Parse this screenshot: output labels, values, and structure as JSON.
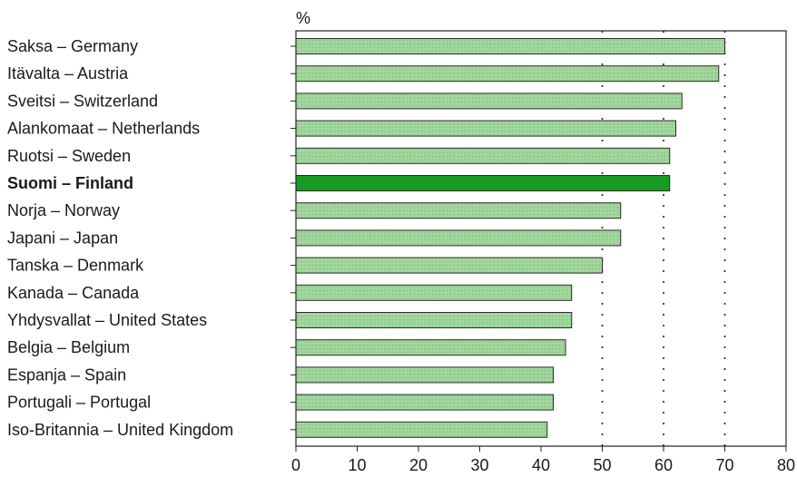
{
  "chart_data": {
    "type": "bar",
    "orientation": "horizontal",
    "unit": "%",
    "categories": [
      "Saksa – Germany",
      "Itävalta – Austria",
      "Sveitsi – Switzerland",
      "Alankomaat – Netherlands",
      "Ruotsi – Sweden",
      "Suomi – Finland",
      "Norja – Norway",
      "Japani  – Japan",
      "Tanska – Denmark",
      "Kanada – Canada",
      "Yhdysvallat – United States",
      "Belgia – Belgium",
      "Espanja – Spain",
      "Portugali – Portugal",
      "Iso-Britannia – United Kingdom"
    ],
    "values": [
      70,
      69,
      63,
      62,
      61,
      61,
      53,
      53,
      50,
      45,
      45,
      44,
      42,
      42,
      41
    ],
    "highlight": "Suomi – Finland",
    "xlim": [
      0,
      80
    ],
    "xticks": [
      "0",
      "10",
      "20",
      "30",
      "40",
      "50",
      "60",
      "70",
      "80"
    ],
    "xlabel": "",
    "ylabel": "",
    "grid": "vertical dotted at 50, 60, 70",
    "colors": {
      "bar": "#9ed49a",
      "bar_highlight": "#179a21",
      "bar_edge": "#2a2a2a"
    }
  }
}
